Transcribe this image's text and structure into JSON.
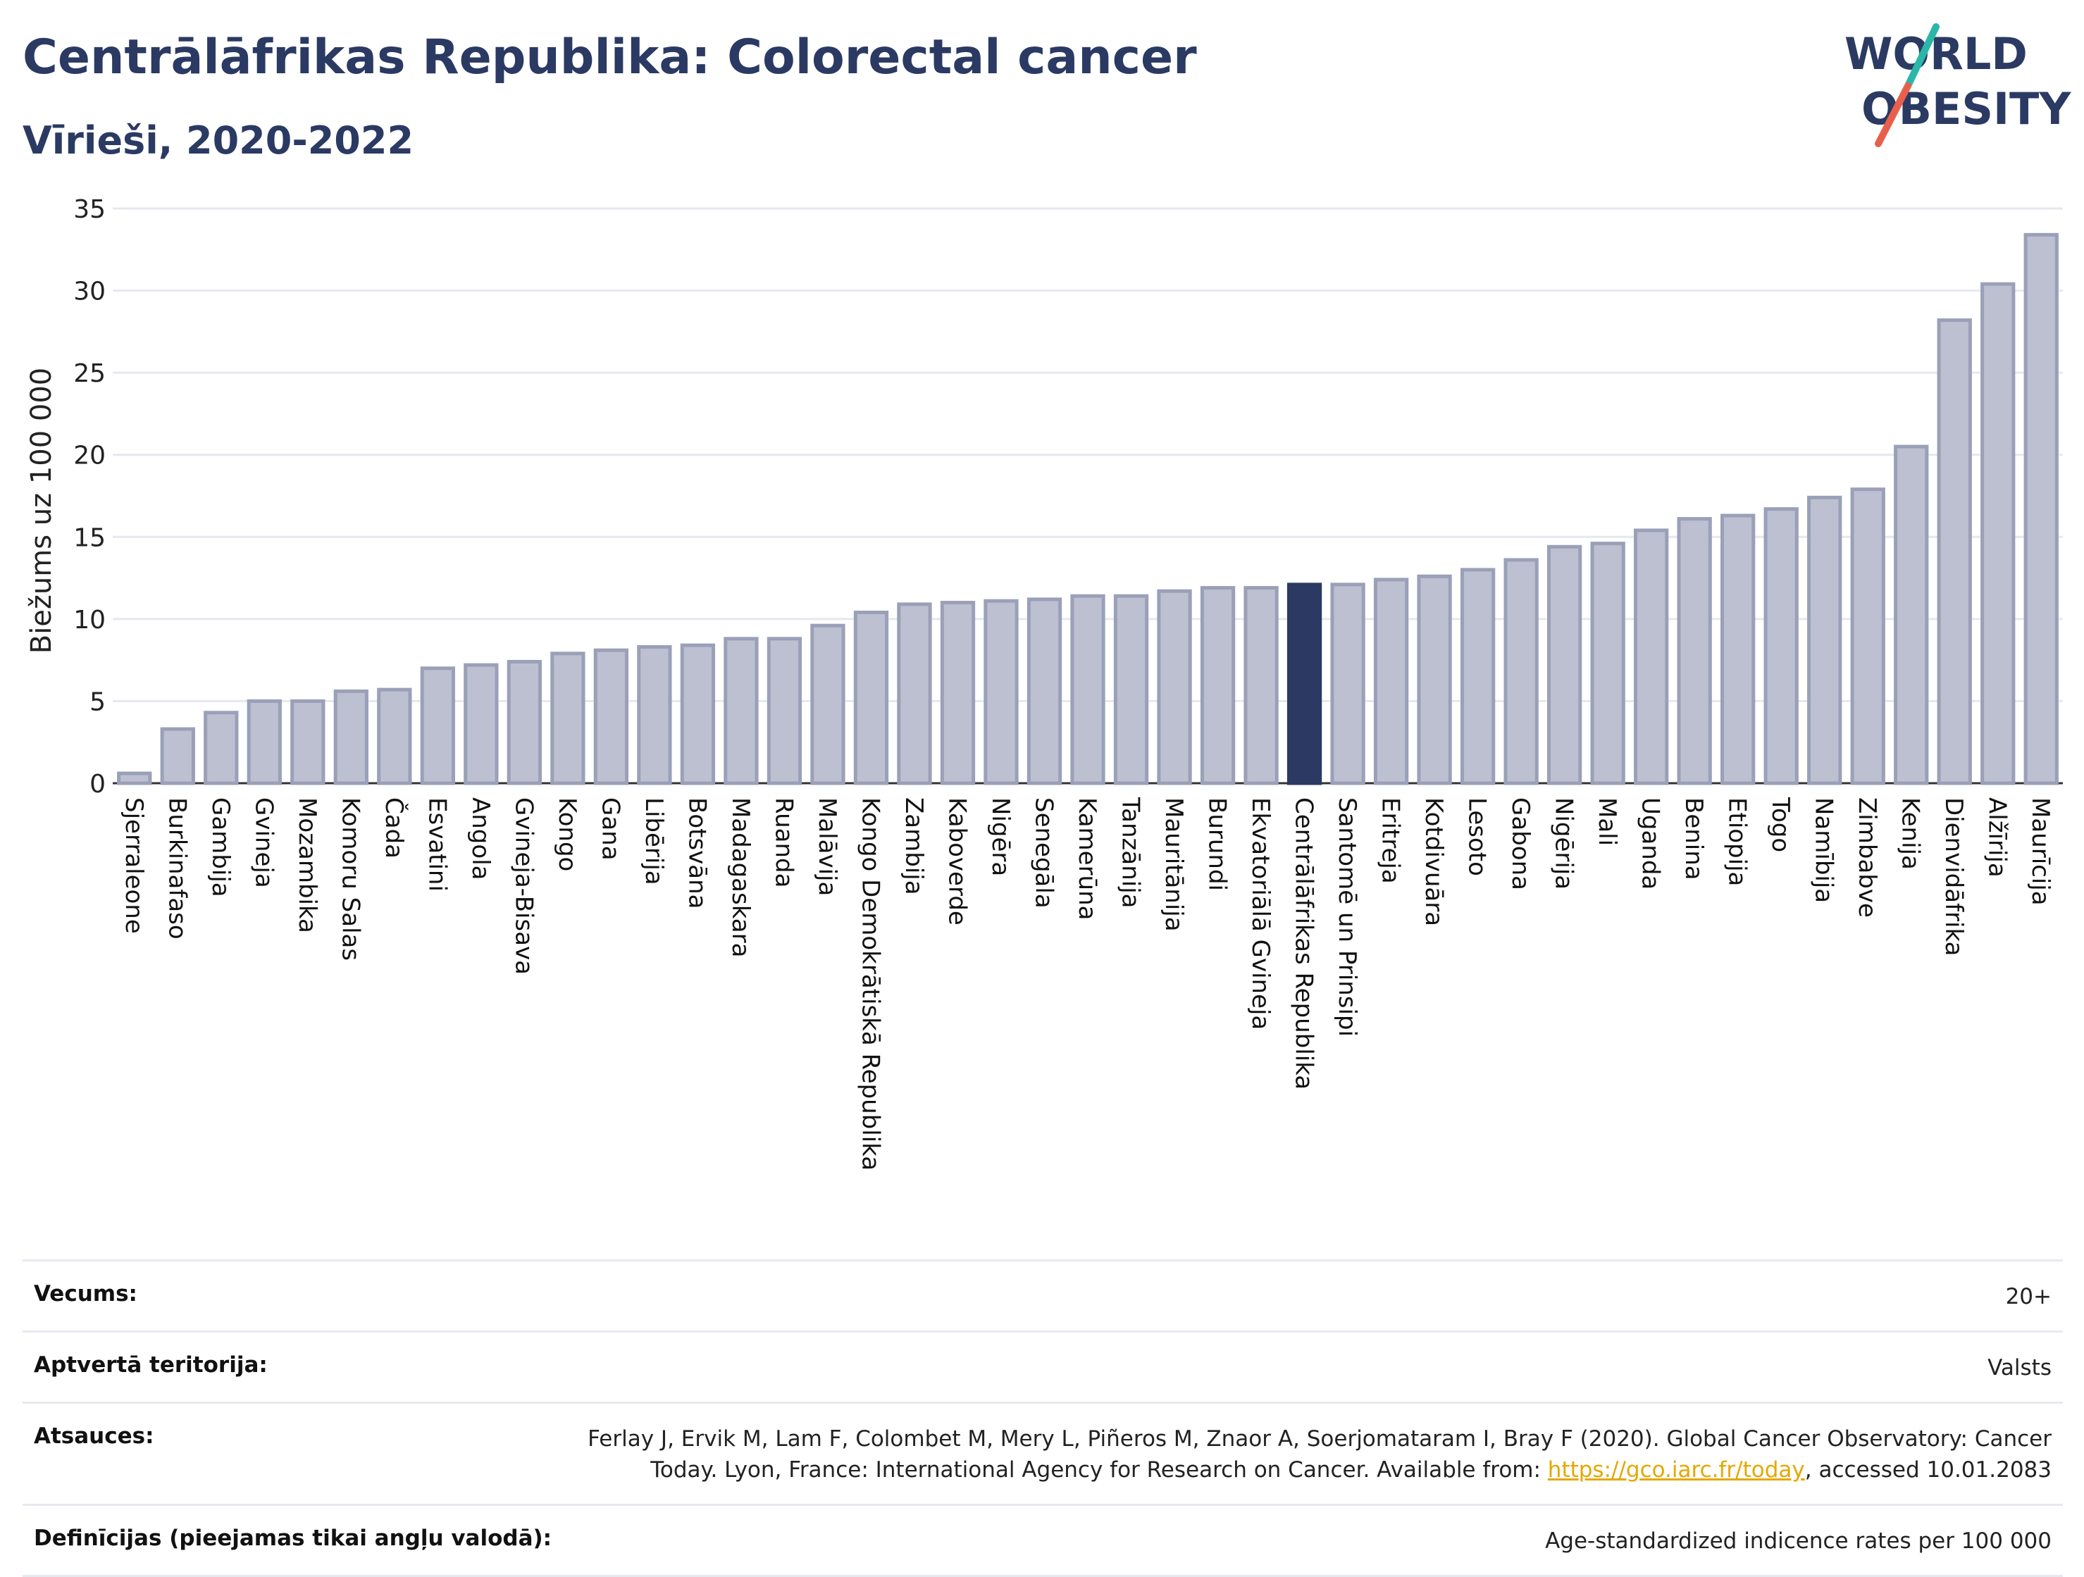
{
  "header": {
    "title": "Centrālāfrikas Republika: Colorectal cancer",
    "subtitle": "Vīrieši, 2020-2022"
  },
  "logo": {
    "line1": "WORLD",
    "line2": "OBESITY",
    "text_color": "#2b3a63",
    "slash_colors": [
      "#2ab7a9",
      "#e8604c"
    ]
  },
  "colors": {
    "bar_fill": "#bcc0d0",
    "bar_stroke": "#9aa0b8",
    "highlight": "#2b3a63",
    "grid": "#e6e8ef",
    "axis": "#333333"
  },
  "chart_data": {
    "type": "bar",
    "ylabel": "Biežums uz 100 000",
    "ylim": [
      0,
      35
    ],
    "yticks": [
      0,
      5,
      10,
      15,
      20,
      25,
      30,
      35
    ],
    "highlight": "Centrālāfrikas Republika",
    "grid": true,
    "categories": [
      "Sjerraleone",
      "Burkinafaso",
      "Gambija",
      "Gvineja",
      "Mozambika",
      "Komoru Salas",
      "Čada",
      "Esvatini",
      "Angola",
      "Gvineja-Bisava",
      "Kongo",
      "Gana",
      "Libērija",
      "Botsvāna",
      "Madagaskara",
      "Ruanda",
      "Malāvija",
      "Kongo Demokrātiskā Republika",
      "Zambija",
      "Kaboverde",
      "Nigēra",
      "Senegāla",
      "Kamerūna",
      "Tanzānija",
      "Mauritānija",
      "Burundi",
      "Ekvatoriālā Gvineja",
      "Centrālāfrikas Republika",
      "Santomē un Prinsipi",
      "Eritreja",
      "Kotdivuāra",
      "Lesoto",
      "Gabona",
      "Nigērija",
      "Mali",
      "Uganda",
      "Benina",
      "Etiopija",
      "Togo",
      "Namībija",
      "Zimbabve",
      "Kenija",
      "Dienvidāfrika",
      "Alžīrija",
      "Maurīcija"
    ],
    "values": [
      0.6,
      3.3,
      4.3,
      5.0,
      5.0,
      5.6,
      5.7,
      7.0,
      7.2,
      7.4,
      7.9,
      8.1,
      8.3,
      8.4,
      8.8,
      8.8,
      9.6,
      10.4,
      10.9,
      11.0,
      11.1,
      11.2,
      11.4,
      11.4,
      11.7,
      11.9,
      11.9,
      12.1,
      12.1,
      12.4,
      12.6,
      13.0,
      13.6,
      14.4,
      14.6,
      15.4,
      16.1,
      16.3,
      16.7,
      17.4,
      17.9,
      20.5,
      28.2,
      30.4,
      33.4
    ]
  },
  "info": {
    "rows": [
      {
        "key": "Vecums:",
        "value": "20+"
      },
      {
        "key": "Aptvertā teritorija:",
        "value": "Valsts"
      },
      {
        "key": "Atsauces:",
        "value_line1": "Ferlay J, Ervik M, Lam F, Colombet M, Mery L, Piñeros M, Znaor A, Soerjomataram I, Bray F (2020). Global Cancer Observatory: Cancer",
        "value_pre": "Today. Lyon, France: International Agency for Research on Cancer. Available from: ",
        "link": "https://gco.iarc.fr/today",
        "value_post": ", accessed 10.01.2083"
      },
      {
        "key": "Definīcijas (pieejamas tikai angļu valodā):",
        "value": "Age-standardized indicence rates per 100 000"
      }
    ]
  }
}
